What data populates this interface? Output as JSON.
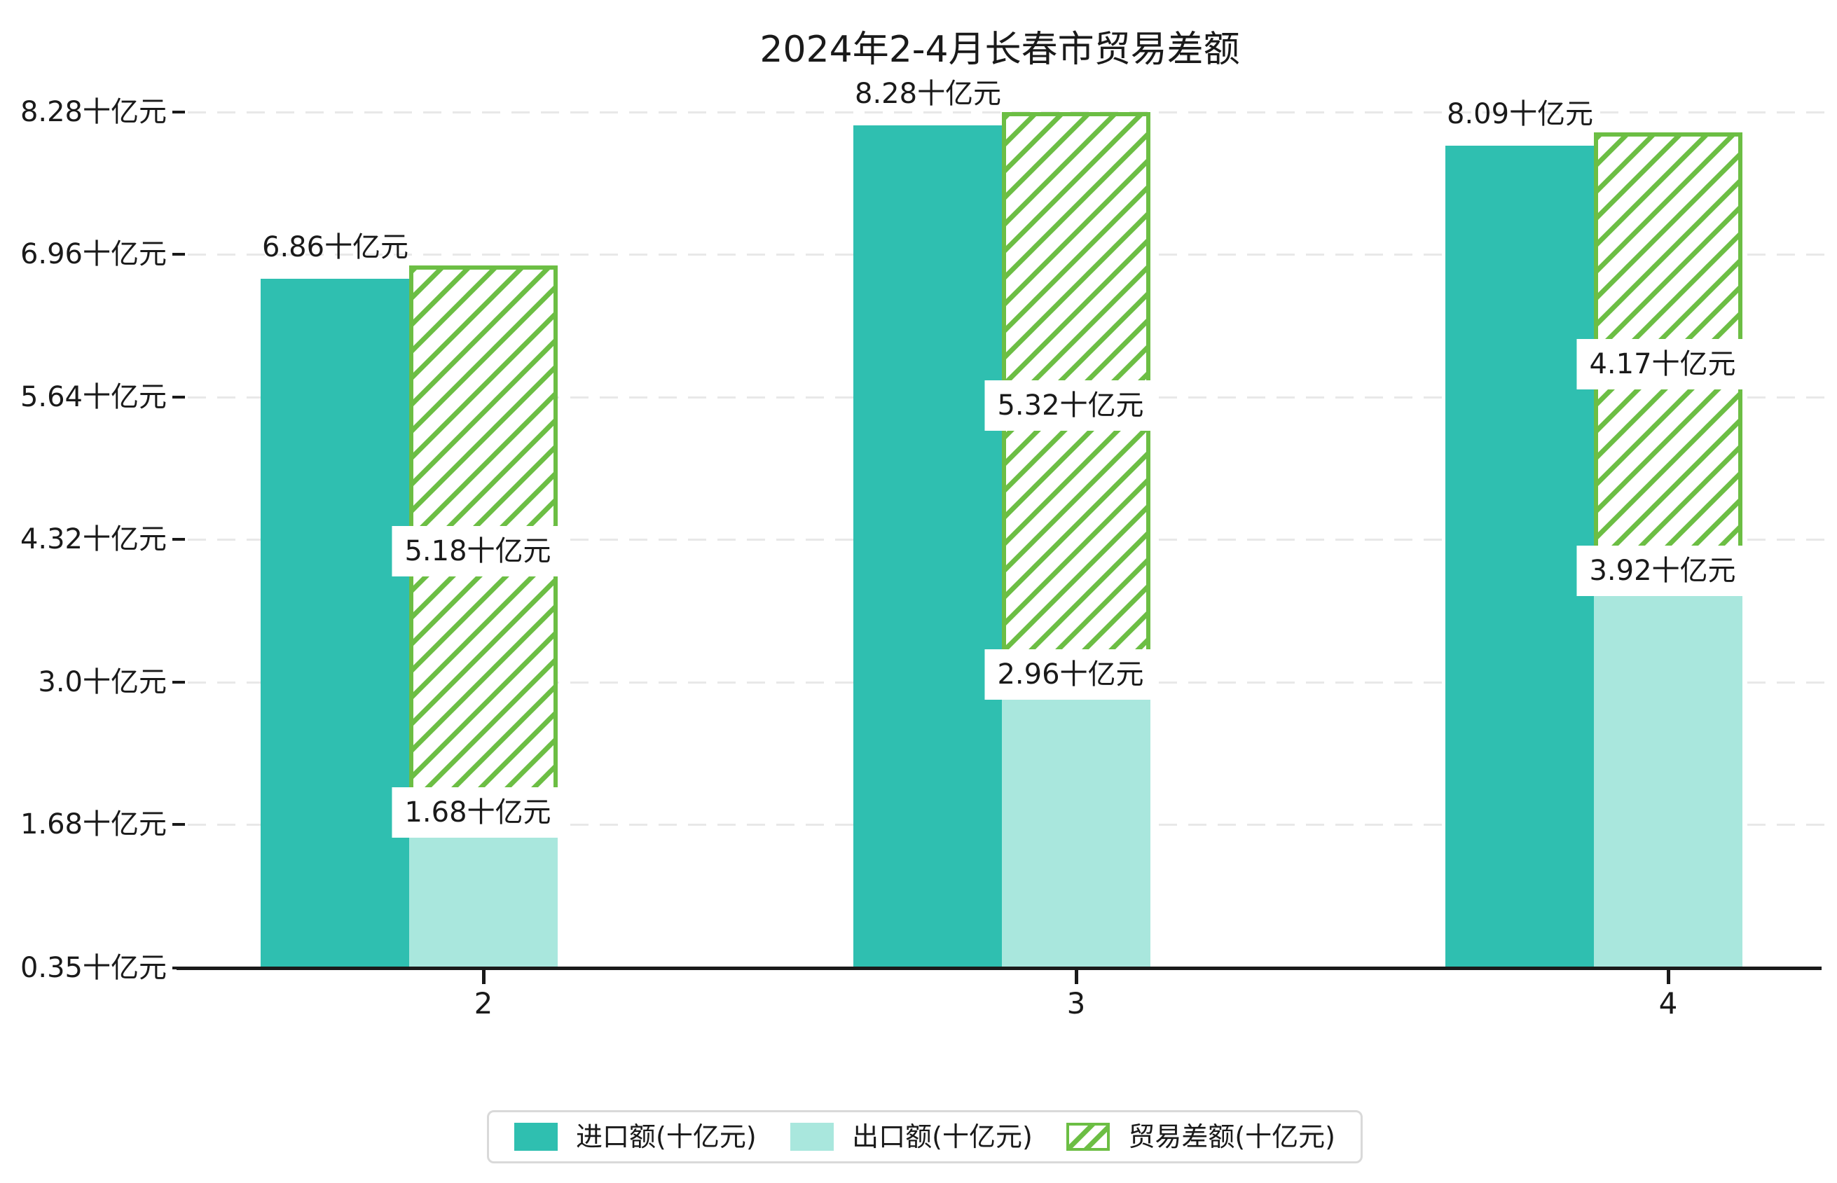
{
  "title": "2024年2-4月长春市贸易差额",
  "colors": {
    "import_bar": "#2fbfb0",
    "export_bar": "#a9e7dd",
    "balance_hatch": "#6cbe44",
    "gridline": "#e8e8e8",
    "axis": "#1a1a1a",
    "text": "#1a1a1a",
    "legend_border": "#d9d9d9",
    "label_box_bg": "#ffffff"
  },
  "y_axis": {
    "unit": "十亿元",
    "ticks": [
      {
        "value": 0.35,
        "label": "0.35十亿元"
      },
      {
        "value": 1.68,
        "label": "1.68十亿元"
      },
      {
        "value": 3.0,
        "label": "3.0十亿元"
      },
      {
        "value": 4.32,
        "label": "4.32十亿元"
      },
      {
        "value": 5.64,
        "label": "5.64十亿元"
      },
      {
        "value": 6.96,
        "label": "6.96十亿元"
      },
      {
        "value": 8.28,
        "label": "8.28十亿元"
      }
    ]
  },
  "x_axis": {
    "categories": [
      "2",
      "3",
      "4"
    ]
  },
  "months": [
    {
      "category": "2",
      "import_value": 6.86,
      "export_value": 1.68,
      "balance_value": 5.18,
      "import_label": "6.86十亿元",
      "export_label": "1.68十亿元",
      "balance_label": "5.18十亿元"
    },
    {
      "category": "3",
      "import_value": 8.28,
      "export_value": 2.96,
      "balance_value": 5.32,
      "import_label": "8.28十亿元",
      "export_label": "2.96十亿元",
      "balance_label": "5.32十亿元"
    },
    {
      "category": "4",
      "import_value": 8.09,
      "export_value": 3.92,
      "balance_value": 4.17,
      "import_label": "8.09十亿元",
      "export_label": "3.92十亿元",
      "balance_label": "4.17十亿元"
    }
  ],
  "legend": {
    "items": [
      {
        "label": "进口额(十亿元)",
        "swatch": "solid-teal"
      },
      {
        "label": "出口额(十亿元)",
        "swatch": "solid-light-teal"
      },
      {
        "label": "贸易差额(十亿元)",
        "swatch": "green-hatch"
      }
    ]
  },
  "chart_data": {
    "type": "bar",
    "title": "2024年2-4月长春市贸易差额",
    "categories": [
      "2",
      "3",
      "4"
    ],
    "series": [
      {
        "name": "进口额(十亿元)",
        "values": [
          6.86,
          8.28,
          8.09
        ],
        "style": "solid",
        "color": "#2fbfb0"
      },
      {
        "name": "出口额(十亿元)",
        "values": [
          1.68,
          2.96,
          3.92
        ],
        "style": "solid",
        "color": "#a9e7dd"
      },
      {
        "name": "贸易差额(十亿元)",
        "values": [
          5.18,
          5.32,
          4.17
        ],
        "style": "hatched-floating",
        "color": "#6cbe44",
        "note": "floating hatched bar spanning from export value up to import value"
      }
    ],
    "xlabel": "",
    "ylabel": "",
    "ylim": [
      0.35,
      8.28
    ],
    "ytick_values": [
      0.35,
      1.68,
      3.0,
      4.32,
      5.64,
      6.96,
      8.28
    ],
    "grid": true,
    "grid_style": "dashed-horizontal",
    "legend_position": "bottom-center"
  }
}
